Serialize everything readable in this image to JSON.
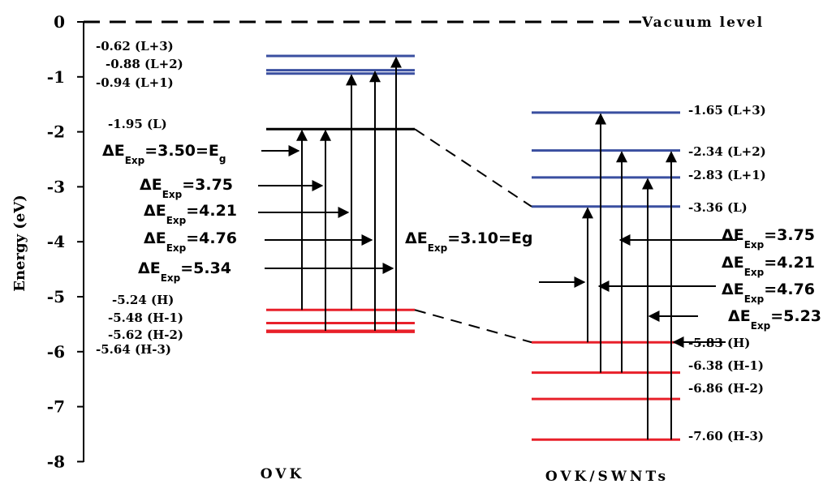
{
  "axis": {
    "ylabel": "Energy (eV)",
    "ticks": [
      "0",
      "-1",
      "-2",
      "-3",
      "-4",
      "-5",
      "-6",
      "-7",
      "-8"
    ]
  },
  "vacuum_label": "Vacuum level",
  "systems": [
    {
      "name": "OVK",
      "levels": [
        {
          "label": "-0.62 (L+3)",
          "energy": -0.62,
          "kind": "lumo"
        },
        {
          "label": "-0.88 (L+2)",
          "energy": -0.88,
          "kind": "lumo"
        },
        {
          "label": "-0.94 (L+1)",
          "energy": -0.94,
          "kind": "lumo"
        },
        {
          "label": "-1.95 (L)",
          "energy": -1.95,
          "kind": "lumo0"
        },
        {
          "label": "-5.24 (H)",
          "energy": -5.24,
          "kind": "homo"
        },
        {
          "label": "-5.48 (H-1)",
          "energy": -5.48,
          "kind": "homo"
        },
        {
          "label": "-5.62 (H-2)",
          "energy": -5.62,
          "kind": "homo"
        },
        {
          "label": "-5.64 (H-3)",
          "energy": -5.64,
          "kind": "homo"
        }
      ],
      "transitions": [
        {
          "delta": "3.50",
          "suffix": "E",
          "suffix_sub": "g"
        },
        {
          "delta": "3.75"
        },
        {
          "delta": "4.21"
        },
        {
          "delta": "4.76"
        },
        {
          "delta": "5.34"
        }
      ]
    },
    {
      "name": "OVK/SWNTs",
      "levels": [
        {
          "label": "-1.65 (L+3)",
          "energy": -1.65,
          "kind": "lumo"
        },
        {
          "label": "-2.34 (L+2)",
          "energy": -2.34,
          "kind": "lumo"
        },
        {
          "label": "-2.83 (L+1)",
          "energy": -2.83,
          "kind": "lumo"
        },
        {
          "label": "-3.36 (L)",
          "energy": -3.36,
          "kind": "lumo"
        },
        {
          "label": "-5.83 (H)",
          "energy": -5.83,
          "kind": "homo"
        },
        {
          "label": "-6.38 (H-1)",
          "energy": -6.38,
          "kind": "homo"
        },
        {
          "label": "-6.86 (H-2)",
          "energy": -6.86,
          "kind": "homo"
        },
        {
          "label": "-7.60 (H-3)",
          "energy": -7.6,
          "kind": "homo"
        }
      ],
      "transitions": [
        {
          "delta": "3.10",
          "suffix": "Eg"
        },
        {
          "delta": "3.75"
        },
        {
          "delta": "4.21"
        },
        {
          "delta": "4.76"
        },
        {
          "delta": "5.23"
        }
      ]
    }
  ],
  "delta_symbol": "ΔE",
  "delta_sub": "Exp",
  "colors": {
    "lumo": "#3a4fa0",
    "lumo0": "#000000",
    "homo": "#e8202a",
    "ink": "#000000"
  }
}
